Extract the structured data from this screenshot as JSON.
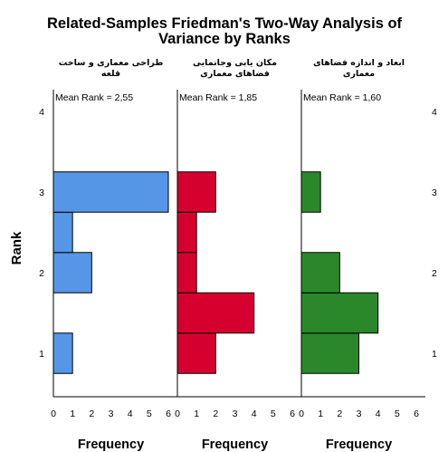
{
  "chart_data": {
    "type": "bar",
    "orientation": "horizontal",
    "title_lines": [
      "Related-Samples Friedman's Two-Way Analysis of",
      "Variance by Ranks"
    ],
    "ylabel": "Rank",
    "xlabel": "Frequency",
    "y_ticks": [
      "1",
      "2",
      "3",
      "4"
    ],
    "x_ticks": [
      "0",
      "1",
      "2",
      "3",
      "4",
      "5",
      "6"
    ],
    "xlim": [
      0,
      6
    ],
    "ylim": [
      0.5,
      4.5
    ],
    "bin_width": 0.5,
    "panels": [
      {
        "title_lines": [
          "طراحی معماری و ساخت",
          "قلعه"
        ],
        "mean_rank_label": "Mean Rank = 2,55",
        "color": "#5596e6",
        "bins": [
          {
            "rank": 1.0,
            "frequency": 1
          },
          {
            "rank": 2.0,
            "frequency": 2
          },
          {
            "rank": 2.5,
            "frequency": 1
          },
          {
            "rank": 3.0,
            "frequency": 6
          }
        ]
      },
      {
        "title_lines": [
          "مکان یابی وجانمایی",
          "فضاهای معماری"
        ],
        "mean_rank_label": "Mean Rank = 1,85",
        "color": "#d6002f",
        "bins": [
          {
            "rank": 1.0,
            "frequency": 2
          },
          {
            "rank": 1.5,
            "frequency": 4
          },
          {
            "rank": 2.0,
            "frequency": 1
          },
          {
            "rank": 2.5,
            "frequency": 1
          },
          {
            "rank": 3.0,
            "frequency": 2
          }
        ]
      },
      {
        "title_lines": [
          "ابعاد و اندازه فضاهای",
          "معماری"
        ],
        "mean_rank_label": "Mean Rank = 1,60",
        "color": "#2a882a",
        "bins": [
          {
            "rank": 1.0,
            "frequency": 3
          },
          {
            "rank": 1.5,
            "frequency": 4
          },
          {
            "rank": 2.0,
            "frequency": 2
          },
          {
            "rank": 3.0,
            "frequency": 1
          }
        ]
      }
    ]
  }
}
